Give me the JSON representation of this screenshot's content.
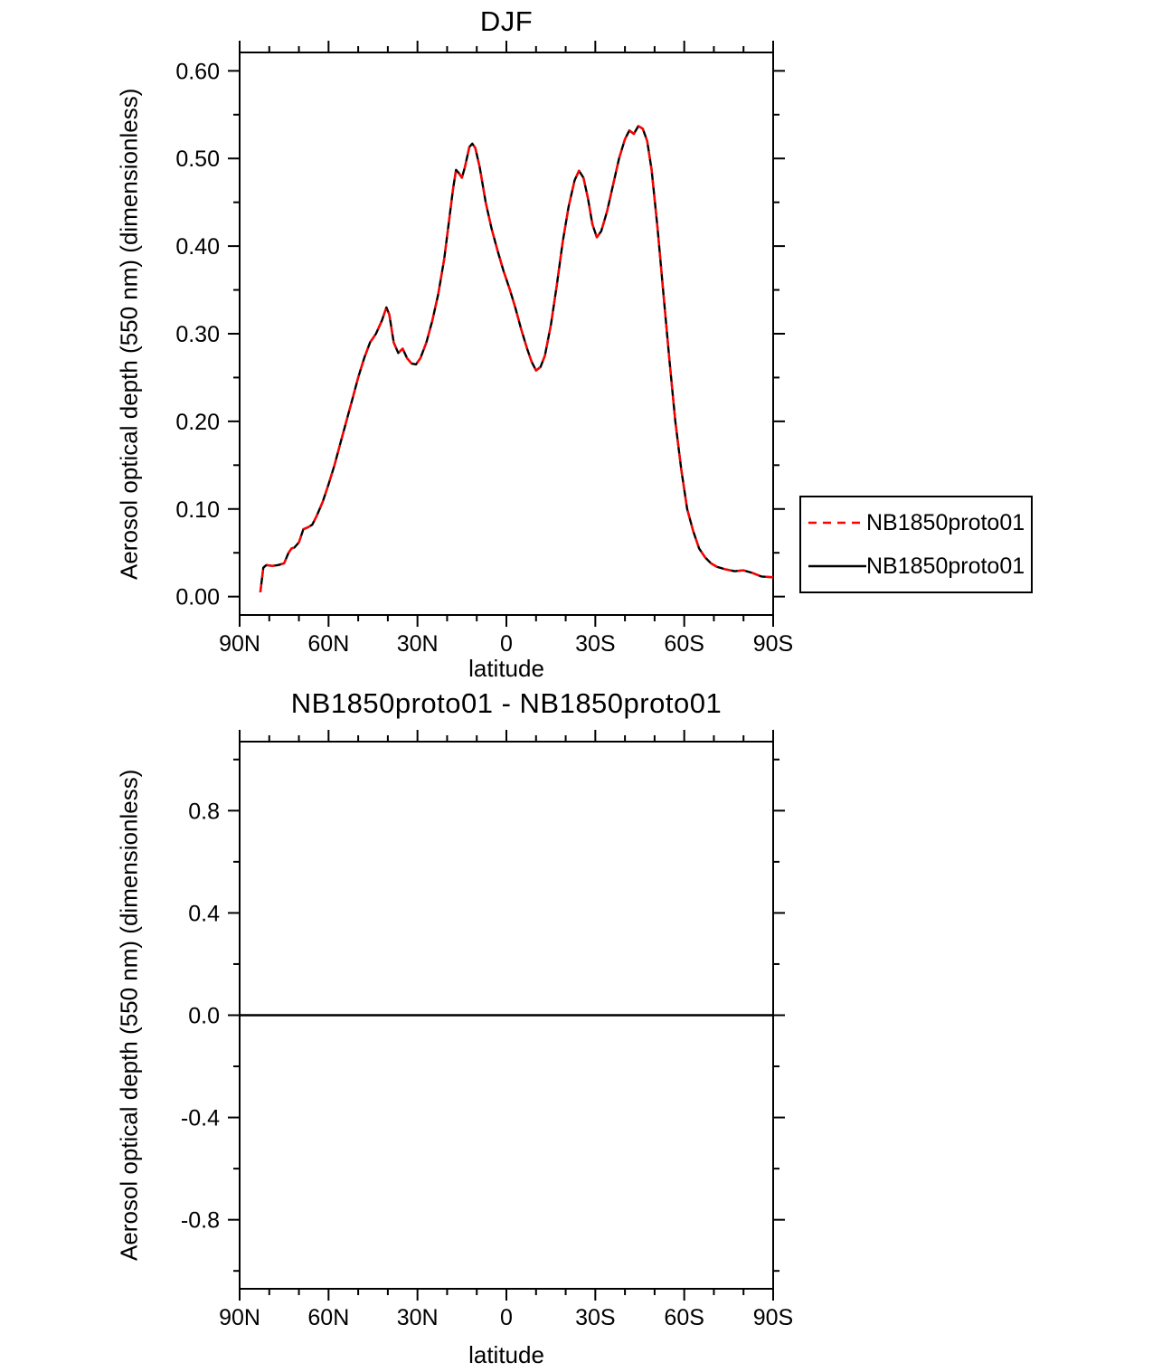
{
  "page": {
    "background": "#ffffff"
  },
  "colors": {
    "series_red": "#ff0000",
    "series_black": "#000000",
    "axis": "#000000"
  },
  "chart_data": [
    {
      "type": "line",
      "title": "DJF",
      "xlabel": "latitude",
      "ylabel": "Aerosol optical depth (550 nm) (dimensionless)",
      "xlim": [
        90,
        -90
      ],
      "ylim": [
        0,
        0.6
      ],
      "grid": false,
      "legend": {
        "position": "right-outside",
        "entries": [
          "NB1850proto01",
          "NB1850proto01"
        ]
      },
      "xticks": {
        "major": [
          90,
          60,
          30,
          0,
          -30,
          -60,
          -90
        ],
        "labels": [
          "90N",
          "60N",
          "30N",
          "0",
          "30S",
          "60S",
          "90S"
        ],
        "minor_step": 10
      },
      "yticks": {
        "major": [
          0,
          0.1,
          0.2,
          0.3,
          0.4,
          0.5,
          0.6
        ],
        "labels": [
          "0.00",
          "0.10",
          "0.20",
          "0.30",
          "0.40",
          "0.50",
          "0.60"
        ],
        "minor_step": 0.05
      },
      "x": [
        83,
        82,
        81,
        79,
        77,
        75,
        73.5,
        72.5,
        71.5,
        70,
        68.5,
        67,
        65.5,
        64,
        62,
        60,
        58,
        56,
        54,
        52,
        50,
        48,
        46,
        44,
        42,
        40.5,
        39.5,
        38,
        36.5,
        35,
        33.5,
        32,
        30.5,
        29,
        27,
        25,
        23,
        21,
        19.5,
        18,
        17,
        16,
        15,
        14,
        12.5,
        11.5,
        10.5,
        9,
        7,
        5,
        3,
        1,
        -1,
        -3,
        -5,
        -7,
        -8.5,
        -10,
        -11.5,
        -13,
        -15,
        -17,
        -19,
        -21,
        -23,
        -24.5,
        -26,
        -27.5,
        -29,
        -30.5,
        -32,
        -34,
        -36,
        -38,
        -40,
        -41.5,
        -43,
        -44.5,
        -46,
        -47.5,
        -49,
        -51,
        -53,
        -55,
        -57,
        -59,
        -61,
        -63,
        -65,
        -67,
        -69,
        -71,
        -74,
        -77,
        -80,
        -83,
        -86,
        -90
      ],
      "series": [
        {
          "name": "NB1850proto01",
          "color": "#ff0000",
          "line_style": "dashed",
          "values": [
            0.005,
            0.033,
            0.036,
            0.035,
            0.036,
            0.038,
            0.05,
            0.055,
            0.056,
            0.062,
            0.077,
            0.079,
            0.082,
            0.092,
            0.108,
            0.128,
            0.15,
            0.175,
            0.2,
            0.225,
            0.25,
            0.272,
            0.29,
            0.3,
            0.315,
            0.33,
            0.322,
            0.29,
            0.278,
            0.283,
            0.272,
            0.266,
            0.265,
            0.272,
            0.29,
            0.315,
            0.345,
            0.385,
            0.425,
            0.465,
            0.487,
            0.483,
            0.478,
            0.49,
            0.513,
            0.517,
            0.512,
            0.49,
            0.45,
            0.42,
            0.395,
            0.372,
            0.352,
            0.33,
            0.305,
            0.283,
            0.268,
            0.258,
            0.262,
            0.275,
            0.31,
            0.355,
            0.405,
            0.445,
            0.475,
            0.486,
            0.478,
            0.455,
            0.425,
            0.41,
            0.417,
            0.44,
            0.47,
            0.5,
            0.522,
            0.532,
            0.528,
            0.537,
            0.534,
            0.52,
            0.487,
            0.42,
            0.345,
            0.27,
            0.2,
            0.145,
            0.1,
            0.075,
            0.055,
            0.045,
            0.038,
            0.034,
            0.031,
            0.029,
            0.03,
            0.027,
            0.023,
            0.022
          ]
        },
        {
          "name": "NB1850proto01",
          "color": "#000000",
          "line_style": "solid",
          "values": [
            0.005,
            0.033,
            0.036,
            0.035,
            0.036,
            0.038,
            0.05,
            0.055,
            0.056,
            0.062,
            0.077,
            0.079,
            0.082,
            0.092,
            0.108,
            0.128,
            0.15,
            0.175,
            0.2,
            0.225,
            0.25,
            0.272,
            0.29,
            0.3,
            0.315,
            0.33,
            0.322,
            0.29,
            0.278,
            0.283,
            0.272,
            0.266,
            0.265,
            0.272,
            0.29,
            0.315,
            0.345,
            0.385,
            0.425,
            0.465,
            0.487,
            0.483,
            0.478,
            0.49,
            0.513,
            0.517,
            0.512,
            0.49,
            0.45,
            0.42,
            0.395,
            0.372,
            0.352,
            0.33,
            0.305,
            0.283,
            0.268,
            0.258,
            0.262,
            0.275,
            0.31,
            0.355,
            0.405,
            0.445,
            0.475,
            0.486,
            0.478,
            0.455,
            0.425,
            0.41,
            0.417,
            0.44,
            0.47,
            0.5,
            0.522,
            0.532,
            0.528,
            0.537,
            0.534,
            0.52,
            0.487,
            0.42,
            0.345,
            0.27,
            0.2,
            0.145,
            0.1,
            0.075,
            0.055,
            0.045,
            0.038,
            0.034,
            0.031,
            0.029,
            0.03,
            0.027,
            0.023,
            0.022
          ]
        }
      ]
    },
    {
      "type": "line",
      "title": "NB1850proto01 - NB1850proto01",
      "xlabel": "latitude",
      "ylabel": "Aerosol optical depth (550 nm) (dimensionless)",
      "xlim": [
        90,
        -90
      ],
      "ylim": [
        -1,
        1
      ],
      "grid": false,
      "xticks": {
        "major": [
          90,
          60,
          30,
          0,
          -30,
          -60,
          -90
        ],
        "labels": [
          "90N",
          "60N",
          "30N",
          "0",
          "30S",
          "60S",
          "90S"
        ],
        "minor_step": 10
      },
      "yticks": {
        "major": [
          -0.8,
          -0.4,
          0,
          0.4,
          0.8
        ],
        "labels": [
          "-0.8",
          "-0.4",
          "0.0",
          "0.4",
          "0.8"
        ],
        "minor_step": 0.2
      },
      "x": [
        90,
        -90
      ],
      "series": [
        {
          "name": "NB1850proto01 - NB1850proto01",
          "color": "#000000",
          "line_style": "solid",
          "values": [
            0,
            0
          ]
        }
      ]
    }
  ]
}
